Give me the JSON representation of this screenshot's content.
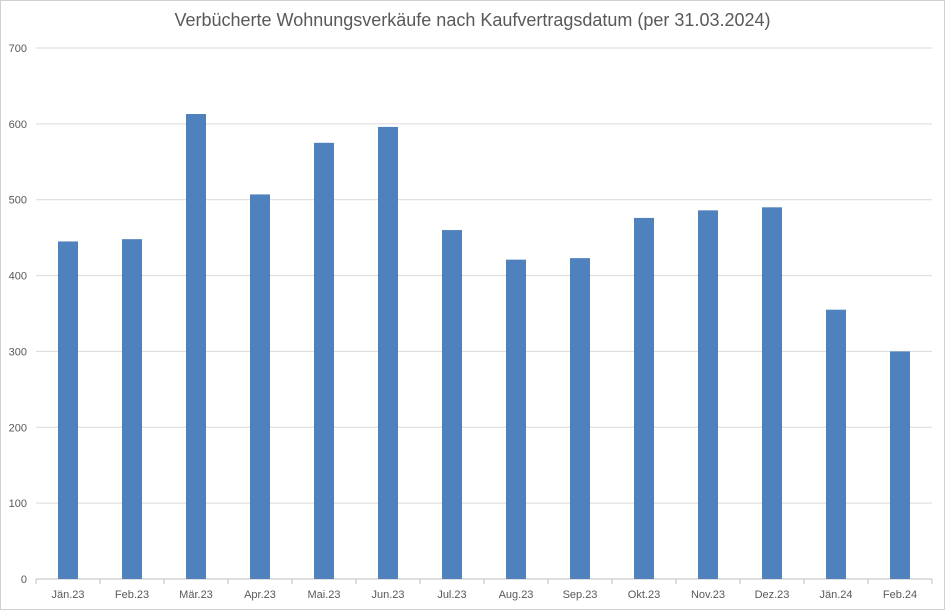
{
  "chart_data": {
    "type": "bar",
    "title": "Verbücherte Wohnungsverkäufe nach Kaufvertragsdatum (per 31.03.2024)",
    "xlabel": "",
    "ylabel": "",
    "ylim": [
      0,
      700
    ],
    "yticks": [
      0,
      100,
      200,
      300,
      400,
      500,
      600,
      700
    ],
    "grid": true,
    "color": "#4f81bd",
    "categories": [
      "Jän.23",
      "Feb.23",
      "Mär.23",
      "Apr.23",
      "Mai.23",
      "Jun.23",
      "Jul.23",
      "Aug.23",
      "Sep.23",
      "Okt.23",
      "Nov.23",
      "Dez.23",
      "Jän.24",
      "Feb.24"
    ],
    "values": [
      445,
      448,
      613,
      507,
      575,
      596,
      460,
      421,
      423,
      476,
      486,
      490,
      355,
      300
    ]
  }
}
